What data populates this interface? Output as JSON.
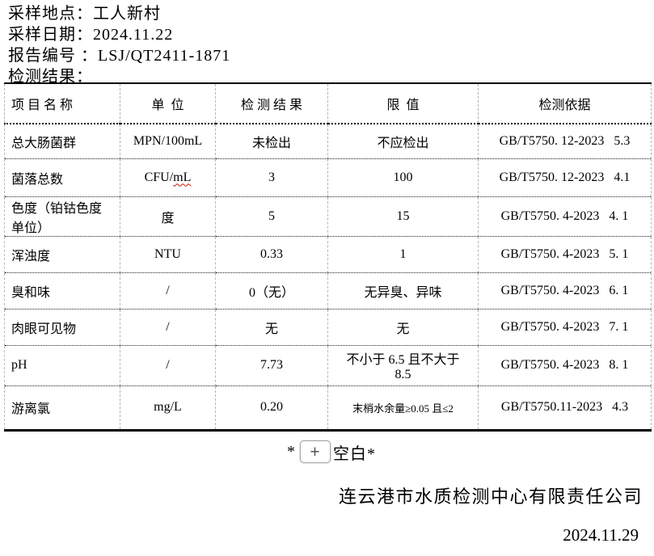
{
  "header": {
    "lines": [
      {
        "label": "采样地点：",
        "value": "工人新村"
      },
      {
        "label": "采样日期：",
        "value": "2024.11.22"
      },
      {
        "label": "报告编号 ：",
        "value": "LSJ/QT2411-1871"
      },
      {
        "label": "检测结果：",
        "value": ""
      }
    ]
  },
  "table": {
    "columns": [
      {
        "key": "name",
        "label": "项 目 名 称"
      },
      {
        "key": "unit",
        "label": "单  位"
      },
      {
        "key": "result",
        "label": "检 测 结 果"
      },
      {
        "key": "limit",
        "label": "限  值"
      },
      {
        "key": "basis",
        "label": "检测依据"
      }
    ],
    "rows": [
      {
        "name": "总大肠菌群",
        "unit": "MPN/100mL",
        "result": "未检出",
        "limit": "不应检出",
        "basis": "GB/T5750. 12-2023   5.3"
      },
      {
        "name": "菌落总数",
        "unit": "CFU/mL",
        "unit_wavy": "mL",
        "result": "3",
        "limit": "100",
        "basis": "GB/T5750. 12-2023   4.1"
      },
      {
        "name": "色度（铂钴色度\n单位）",
        "unit": "度",
        "result": "5",
        "limit": "15",
        "basis": "GB/T5750. 4-2023   4. 1"
      },
      {
        "name": "浑浊度",
        "unit": "NTU",
        "result": "0.33",
        "limit": "1",
        "basis": "GB/T5750. 4-2023   5. 1"
      },
      {
        "name": "臭和味",
        "unit": "/",
        "result": "0（无）",
        "limit": "无异臭、异味",
        "basis": "GB/T5750. 4-2023   6. 1"
      },
      {
        "name": "肉眼可见物",
        "unit": "/",
        "result": "无",
        "limit": "无",
        "basis": "GB/T5750. 4-2023   7. 1"
      },
      {
        "name": "pH",
        "unit": "/",
        "result": "7.73",
        "limit": "不小于 6.5 且不大于\n8.5",
        "basis": "GB/T5750. 4-2023   8. 1"
      },
      {
        "name": "游离氯",
        "unit": "mg/L",
        "result": "0.20",
        "limit": "末梢水余量≥0.05 且≤2",
        "limit_small": true,
        "basis": "GB/T5750.11-2023   4.3"
      }
    ]
  },
  "footer": {
    "blank_prefix": "*",
    "expand_button_glyph": "+",
    "expand_button_icon": "plus-icon",
    "blank_suffix": "空白*",
    "company": "连云港市水质检测中心有限责任公司",
    "date": "2024.11.29"
  }
}
